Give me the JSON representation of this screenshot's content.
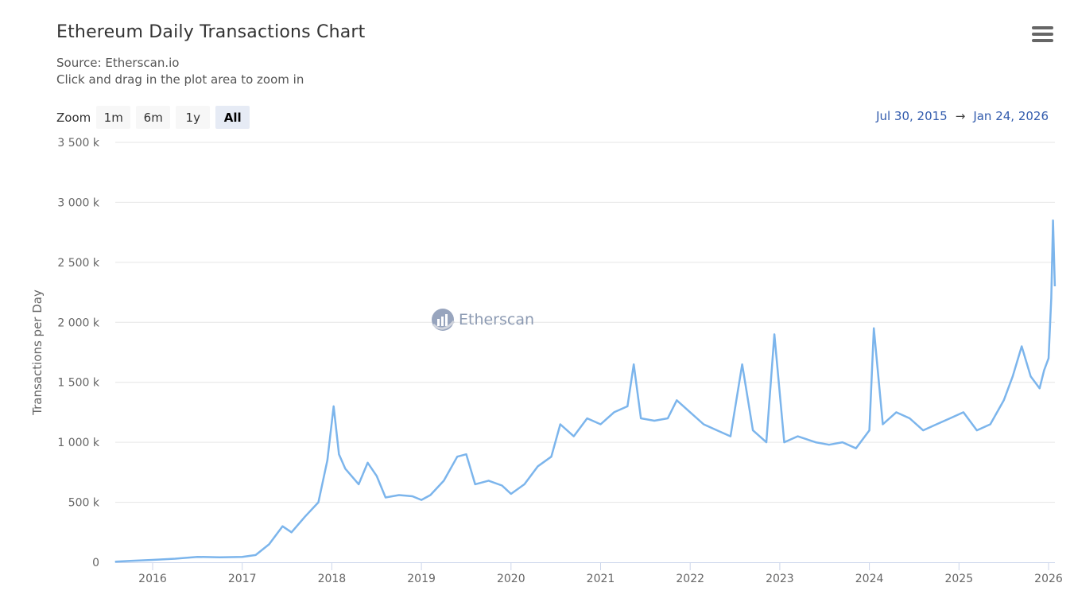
{
  "header": {
    "title": "Ethereum Daily Transactions Chart",
    "subtitle_line1": "Source: Etherscan.io",
    "subtitle_line2": "Click and drag in the plot area to zoom in"
  },
  "range_selector": {
    "label": "Zoom",
    "buttons": [
      {
        "label": "1m",
        "active": false
      },
      {
        "label": "6m",
        "active": false
      },
      {
        "label": "1y",
        "active": false
      },
      {
        "label": "All",
        "active": true
      }
    ],
    "from": "Jul 30, 2015",
    "arrow": "→",
    "to": "Jan 24, 2026"
  },
  "watermark": {
    "text": "Etherscan"
  },
  "icons": {
    "menu": "hamburger-menu-icon",
    "watermark_logo": "etherscan-logo-icon"
  },
  "colors": {
    "line": "#7cb5ec",
    "grid": "#e6e6e6",
    "axis": "#ccd6eb",
    "date_text": "#335cad",
    "label": "#666666"
  },
  "chart_data": {
    "type": "line",
    "title": "Ethereum Daily Transactions Chart",
    "subtitle": "Source: Etherscan.io",
    "xlabel": "",
    "ylabel": "Transactions per Day",
    "ylim": [
      0,
      3500000
    ],
    "yticks": [
      0,
      500000,
      1000000,
      1500000,
      2000000,
      2500000,
      3000000,
      3500000
    ],
    "ytick_labels": [
      "0",
      "500 k",
      "1 000 k",
      "1 500 k",
      "2 000 k",
      "2 500 k",
      "3 000 k",
      "3 500 k"
    ],
    "xticks": [
      "2016",
      "2017",
      "2018",
      "2019",
      "2020",
      "2021",
      "2022",
      "2023",
      "2024",
      "2025",
      "2026"
    ],
    "grid": true,
    "legend": false,
    "series": [
      {
        "name": "Transactions per Day",
        "x": [
          2015.58,
          2015.75,
          2016.0,
          2016.25,
          2016.5,
          2016.75,
          2017.0,
          2017.15,
          2017.3,
          2017.45,
          2017.55,
          2017.7,
          2017.85,
          2017.95,
          2018.02,
          2018.08,
          2018.15,
          2018.3,
          2018.4,
          2018.5,
          2018.6,
          2018.75,
          2018.9,
          2019.0,
          2019.1,
          2019.25,
          2019.4,
          2019.5,
          2019.6,
          2019.75,
          2019.9,
          2020.0,
          2020.15,
          2020.3,
          2020.45,
          2020.55,
          2020.7,
          2020.85,
          2021.0,
          2021.15,
          2021.3,
          2021.37,
          2021.45,
          2021.6,
          2021.75,
          2021.85,
          2022.0,
          2022.15,
          2022.3,
          2022.45,
          2022.58,
          2022.7,
          2022.85,
          2022.94,
          2023.05,
          2023.2,
          2023.4,
          2023.55,
          2023.7,
          2023.85,
          2024.0,
          2024.05,
          2024.15,
          2024.3,
          2024.45,
          2024.6,
          2024.75,
          2024.9,
          2025.05,
          2025.2,
          2025.35,
          2025.5,
          2025.6,
          2025.7,
          2025.8,
          2025.9,
          2025.95,
          2026.0,
          2026.03,
          2026.05,
          2026.07
        ],
        "values": [
          5000,
          12000,
          20000,
          30000,
          45000,
          42000,
          45000,
          60000,
          150000,
          300000,
          250000,
          380000,
          500000,
          850000,
          1300000,
          900000,
          780000,
          650000,
          830000,
          720000,
          540000,
          560000,
          550000,
          520000,
          560000,
          680000,
          880000,
          900000,
          650000,
          680000,
          640000,
          570000,
          650000,
          800000,
          880000,
          1150000,
          1050000,
          1200000,
          1150000,
          1250000,
          1300000,
          1650000,
          1200000,
          1180000,
          1200000,
          1350000,
          1250000,
          1150000,
          1100000,
          1050000,
          1650000,
          1100000,
          1000000,
          1900000,
          1000000,
          1050000,
          1000000,
          980000,
          1000000,
          950000,
          1100000,
          1950000,
          1150000,
          1250000,
          1200000,
          1100000,
          1150000,
          1200000,
          1250000,
          1100000,
          1150000,
          1350000,
          1550000,
          1800000,
          1550000,
          1450000,
          1600000,
          1700000,
          2200000,
          2850000,
          2300000
        ]
      }
    ]
  }
}
